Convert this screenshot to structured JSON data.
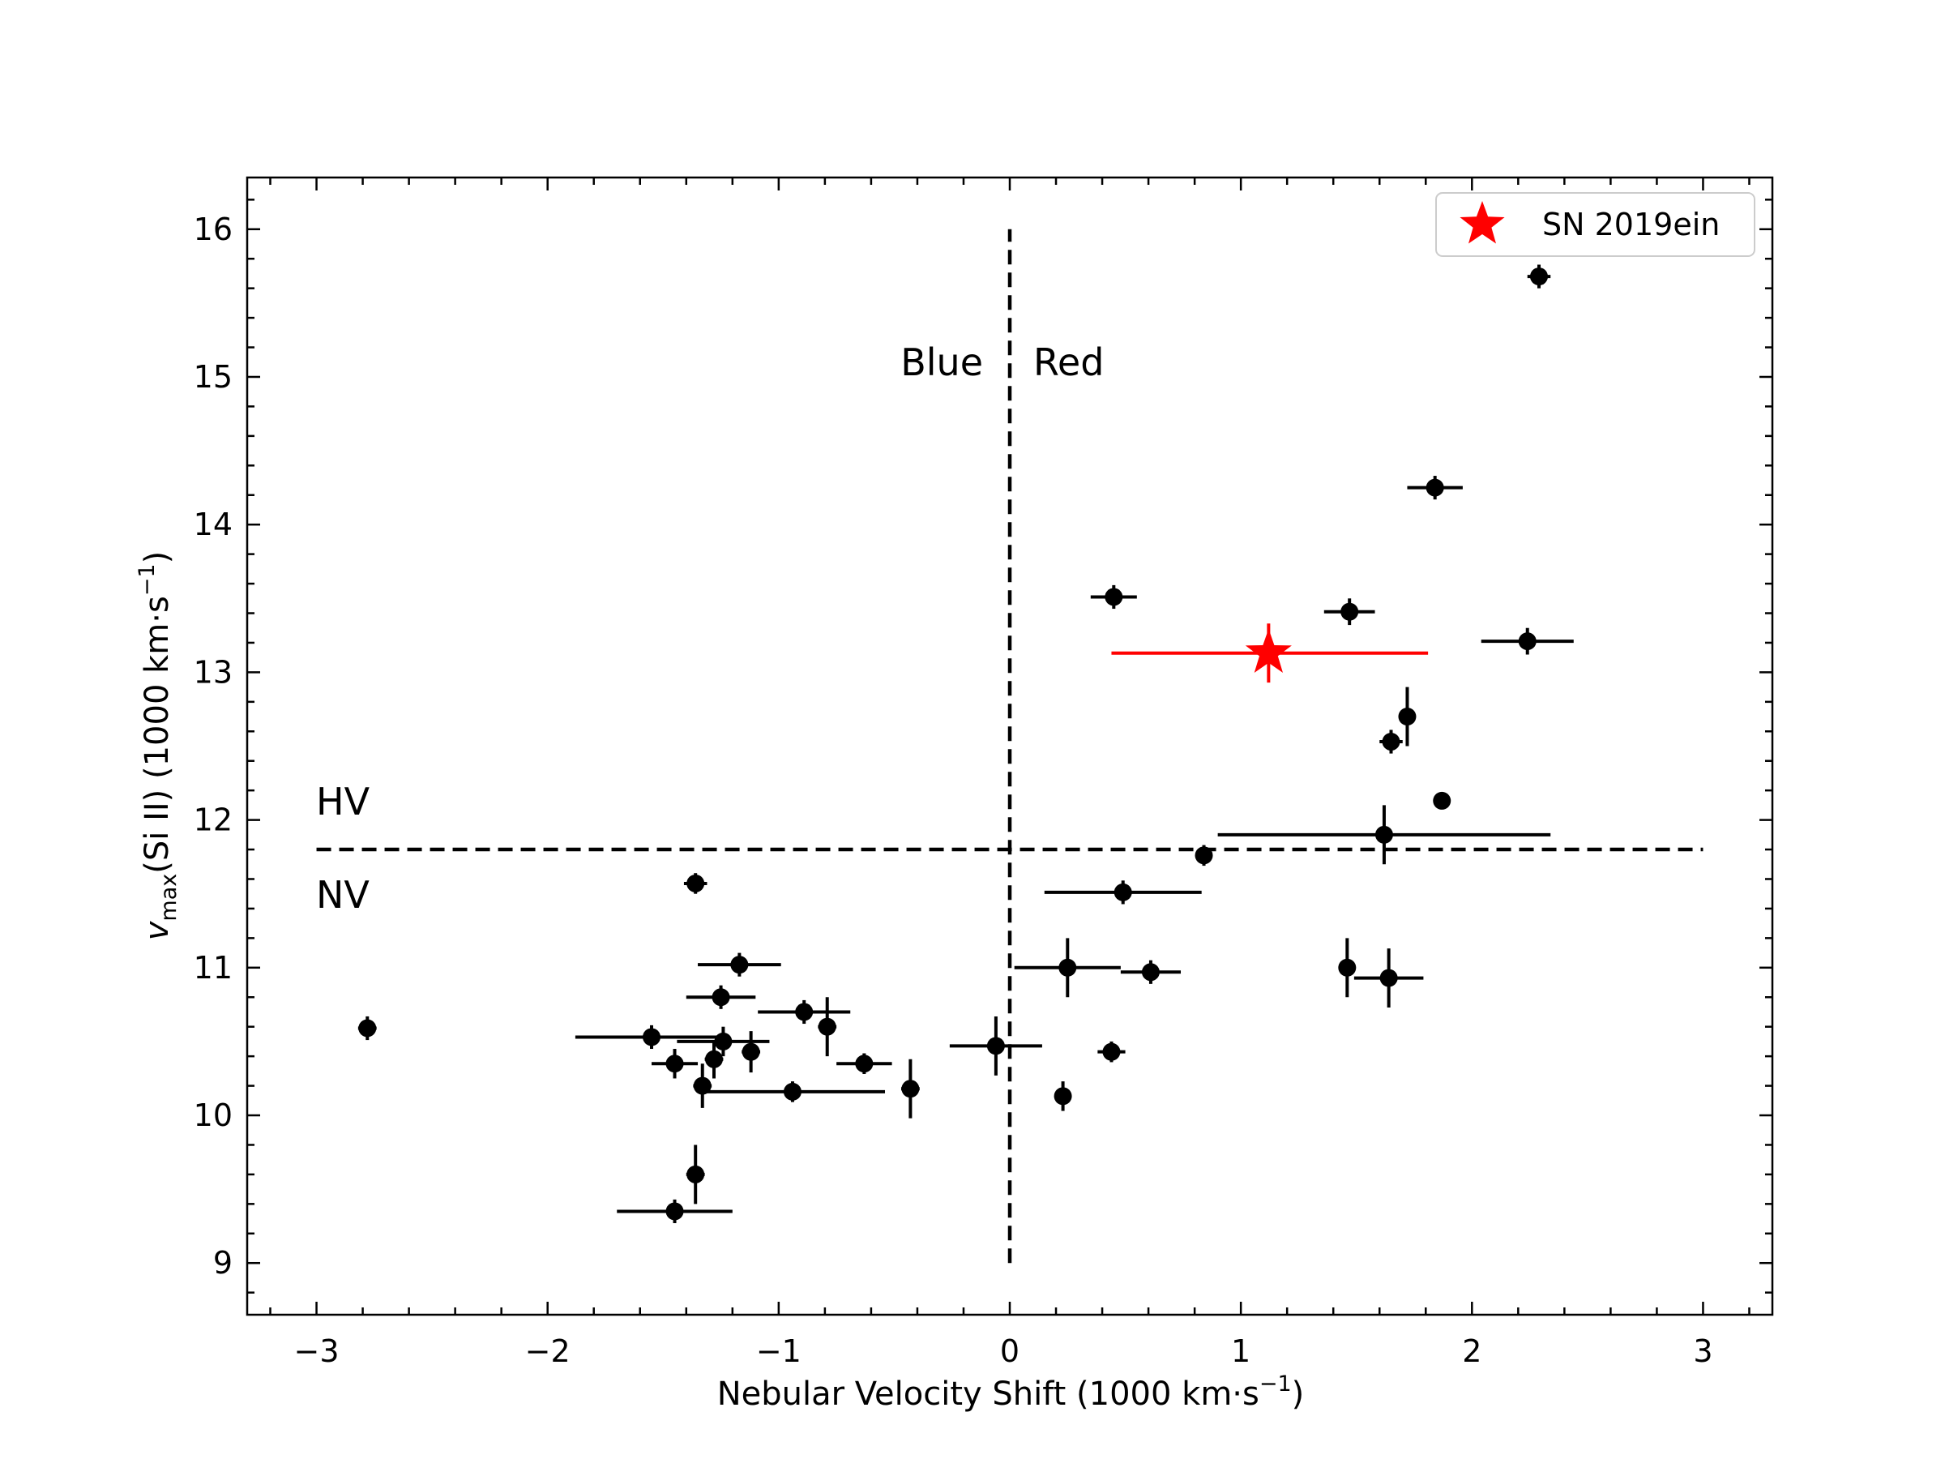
{
  "chart_data": {
    "type": "scatter",
    "xlabel": "Nebular Velocity Shift (1000 km·s",
    "xlabel_sup": "−1",
    "xlabel_end": ")",
    "ylabel_v": "v",
    "ylabel_sub": "max",
    "ylabel_rest": "(Si II) (1000 km·s",
    "ylabel_sup": "−1",
    "ylabel_end": ")",
    "xlim": [
      -3.3,
      3.3
    ],
    "ylim": [
      8.65,
      16.35
    ],
    "xticks": [
      -3,
      -2,
      -1,
      0,
      1,
      2,
      3
    ],
    "xtick_labels": [
      "−3",
      "−2",
      "−1",
      "0",
      "1",
      "2",
      "3"
    ],
    "yticks": [
      9,
      10,
      11,
      12,
      13,
      14,
      15,
      16
    ],
    "ytick_labels": [
      "9",
      "10",
      "11",
      "12",
      "13",
      "14",
      "15",
      "16"
    ],
    "annotations": {
      "blue": "Blue",
      "red": "Red",
      "hv": "HV",
      "nv": "NV"
    },
    "divider_lines": {
      "vertical_x": 0,
      "vertical_y_range": [
        9,
        16
      ],
      "horizontal_y": 11.8,
      "horizontal_x_range": [
        -3,
        3
      ]
    },
    "legend": {
      "location": "top-right",
      "label": "SN 2019ein"
    },
    "colors": {
      "sample": "#000000",
      "highlight": "#ff0000"
    },
    "series": [
      {
        "name": "sample",
        "marker": "circle",
        "points": [
          {
            "x": -2.78,
            "y": 10.59,
            "xerr": 0.04,
            "yerr": 0.08
          },
          {
            "x": -1.55,
            "y": 10.53,
            "xerr": 0.33,
            "yerr": 0.08
          },
          {
            "x": -1.45,
            "y": 10.35,
            "xerr": 0.1,
            "yerr": 0.1
          },
          {
            "x": -1.45,
            "y": 9.35,
            "xerr": 0.25,
            "yerr": 0.08
          },
          {
            "x": -1.36,
            "y": 11.57,
            "xerr": 0.05,
            "yerr": 0.07
          },
          {
            "x": -1.36,
            "y": 9.6,
            "xerr": 0.04,
            "yerr": 0.2
          },
          {
            "x": -1.33,
            "y": 10.2,
            "xerr": 0.04,
            "yerr": 0.15
          },
          {
            "x": -1.28,
            "y": 10.38,
            "xerr": 0.04,
            "yerr": 0.13
          },
          {
            "x": -1.25,
            "y": 10.8,
            "xerr": 0.15,
            "yerr": 0.08
          },
          {
            "x": -1.24,
            "y": 10.5,
            "xerr": 0.2,
            "yerr": 0.1
          },
          {
            "x": -1.17,
            "y": 11.02,
            "xerr": 0.18,
            "yerr": 0.08
          },
          {
            "x": -1.12,
            "y": 10.43,
            "xerr": 0.04,
            "yerr": 0.14
          },
          {
            "x": -0.94,
            "y": 10.16,
            "xerr": 0.4,
            "yerr": 0.07
          },
          {
            "x": -0.89,
            "y": 10.7,
            "xerr": 0.2,
            "yerr": 0.08
          },
          {
            "x": -0.79,
            "y": 10.6,
            "xerr": 0.04,
            "yerr": 0.2
          },
          {
            "x": -0.63,
            "y": 10.35,
            "xerr": 0.12,
            "yerr": 0.07
          },
          {
            "x": -0.43,
            "y": 10.18,
            "xerr": 0.04,
            "yerr": 0.2
          },
          {
            "x": -0.06,
            "y": 10.47,
            "xerr": 0.2,
            "yerr": 0.2
          },
          {
            "x": 0.23,
            "y": 10.13,
            "xerr": 0.03,
            "yerr": 0.1
          },
          {
            "x": 0.25,
            "y": 11.0,
            "xerr": 0.23,
            "yerr": 0.2
          },
          {
            "x": 0.44,
            "y": 10.43,
            "xerr": 0.06,
            "yerr": 0.07
          },
          {
            "x": 0.45,
            "y": 13.51,
            "xerr": 0.1,
            "yerr": 0.08
          },
          {
            "x": 0.49,
            "y": 11.51,
            "xerr": 0.34,
            "yerr": 0.08
          },
          {
            "x": 0.61,
            "y": 10.97,
            "xerr": 0.13,
            "yerr": 0.08
          },
          {
            "x": 0.84,
            "y": 11.76,
            "xerr": 0.03,
            "yerr": 0.07
          },
          {
            "x": 1.46,
            "y": 11.0,
            "xerr": 0.03,
            "yerr": 0.2
          },
          {
            "x": 1.47,
            "y": 13.41,
            "xerr": 0.11,
            "yerr": 0.09
          },
          {
            "x": 1.62,
            "y": 11.9,
            "xerr": 0.72,
            "yerr": 0.2
          },
          {
            "x": 1.64,
            "y": 10.93,
            "xerr": 0.15,
            "yerr": 0.2
          },
          {
            "x": 1.65,
            "y": 12.53,
            "xerr": 0.05,
            "yerr": 0.08
          },
          {
            "x": 1.72,
            "y": 12.7,
            "xerr": 0.03,
            "yerr": 0.2
          },
          {
            "x": 1.84,
            "y": 14.25,
            "xerr": 0.12,
            "yerr": 0.08
          },
          {
            "x": 1.87,
            "y": 12.13,
            "xerr": 0.0,
            "yerr": 0.0
          },
          {
            "x": 2.24,
            "y": 13.21,
            "xerr": 0.2,
            "yerr": 0.09
          },
          {
            "x": 2.29,
            "y": 15.68,
            "xerr": 0.05,
            "yerr": 0.08
          }
        ]
      },
      {
        "name": "SN 2019ein",
        "marker": "star",
        "points": [
          {
            "x": 1.12,
            "y": 13.13,
            "xerr_low": 0.68,
            "xerr_high": 0.69,
            "yerr": 0.2
          }
        ]
      }
    ]
  }
}
